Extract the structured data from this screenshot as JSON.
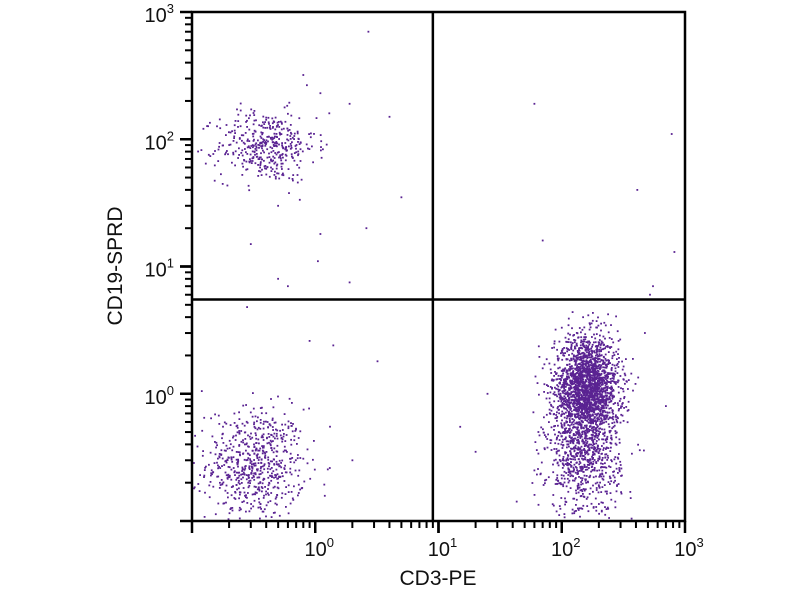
{
  "chart_data": {
    "type": "scatter",
    "title": "",
    "xlabel": "CD3-PE",
    "ylabel": "CD19-SPRD",
    "xscale": "log",
    "yscale": "log",
    "xlim": [
      0.1,
      1000
    ],
    "ylim": [
      0.1,
      1000
    ],
    "x_ticks": [
      {
        "base": "10",
        "exp": "0",
        "value": 1
      },
      {
        "base": "10",
        "exp": "1",
        "value": 10
      },
      {
        "base": "10",
        "exp": "2",
        "value": 100
      },
      {
        "base": "10",
        "exp": "3",
        "value": 1000
      }
    ],
    "y_ticks": [
      {
        "base": "10",
        "exp": "0",
        "value": 1
      },
      {
        "base": "10",
        "exp": "1",
        "value": 10
      },
      {
        "base": "10",
        "exp": "2",
        "value": 100
      },
      {
        "base": "10",
        "exp": "3",
        "value": 1000
      }
    ],
    "quadrant_gates": {
      "x": 9,
      "y": 5.5
    },
    "grid": false,
    "point_color": "#5a2392",
    "populations": [
      {
        "name": "CD3-CD19- (lower-left)",
        "center": [
          0.33,
          0.28
        ],
        "log_sd": [
          0.2,
          0.22
        ],
        "count": 650
      },
      {
        "name": "CD3-CD19+ (upper-left)",
        "center": [
          0.4,
          88
        ],
        "log_sd": [
          0.2,
          0.14
        ],
        "count": 420
      },
      {
        "name": "CD3+CD19- (lower-right, main)",
        "center": [
          160,
          1.1
        ],
        "log_sd": [
          0.13,
          0.2
        ],
        "count": 2200
      },
      {
        "name": "CD3+CD19- (lower-right, low tail)",
        "center": [
          150,
          0.3
        ],
        "log_sd": [
          0.15,
          0.22
        ],
        "count": 700
      }
    ],
    "outliers": [
      [
        2.7,
        700
      ],
      [
        0.8,
        320
      ],
      [
        1.1,
        230
      ],
      [
        1.3,
        160
      ],
      [
        4,
        150
      ],
      [
        1.9,
        190
      ],
      [
        60,
        190
      ],
      [
        780,
        110
      ],
      [
        410,
        40
      ],
      [
        5,
        35
      ],
      [
        0.5,
        30
      ],
      [
        2.6,
        20
      ],
      [
        1.1,
        18
      ],
      [
        0.3,
        15
      ],
      [
        70,
        16
      ],
      [
        820,
        13
      ],
      [
        1.05,
        11
      ],
      [
        0.5,
        8
      ],
      [
        0.6,
        7
      ],
      [
        0.75,
        5.5
      ],
      [
        1.9,
        7.5
      ],
      [
        0.28,
        4.8
      ],
      [
        3.2,
        1.8
      ],
      [
        0.9,
        2.6
      ],
      [
        1.4,
        2.4
      ],
      [
        2,
        0.3
      ],
      [
        20,
        0.35
      ],
      [
        15,
        0.55
      ],
      [
        60,
        0.25
      ],
      [
        25,
        1.0
      ],
      [
        520,
        6
      ],
      [
        550,
        7
      ],
      [
        0.12,
        1.05
      ],
      [
        700,
        0.8
      ]
    ]
  }
}
